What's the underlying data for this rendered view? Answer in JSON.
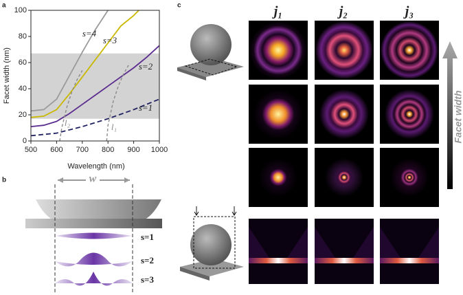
{
  "chart_data": {
    "type": "line",
    "x_label": "Wavelength (nm)",
    "y_label": "Facet width (nm)",
    "xlim": [
      500,
      1000
    ],
    "ylim": [
      0,
      100
    ],
    "xticks": [
      500,
      600,
      700,
      800,
      900,
      1000
    ],
    "yticks": [
      0,
      20,
      40,
      60,
      80,
      100
    ],
    "band": [
      17,
      67
    ],
    "band_color": "#d3d3d3",
    "series": [
      {
        "name": "s=4",
        "color": "#9a9a9a",
        "dashed": false,
        "x": [
          500,
          550,
          600,
          650,
          700,
          750,
          800
        ],
        "values": [
          23,
          24,
          32,
          50,
          68,
          85,
          100
        ]
      },
      {
        "name": "s=3",
        "color": "#c9b800",
        "dashed": false,
        "x": [
          500,
          550,
          600,
          650,
          700,
          750,
          800,
          850,
          900,
          920
        ],
        "values": [
          18,
          19,
          24,
          36,
          49,
          62,
          75,
          88,
          96,
          100
        ]
      },
      {
        "name": "s=2",
        "color": "#5b2c8f",
        "dashed": false,
        "x": [
          500,
          550,
          600,
          650,
          700,
          750,
          800,
          850,
          900,
          950,
          1000
        ],
        "values": [
          11,
          12,
          15,
          21,
          28,
          35,
          42,
          49,
          56,
          64,
          73
        ]
      },
      {
        "name": "s=1",
        "color": "#1f2060",
        "dashed": true,
        "x": [
          500,
          600,
          700,
          800,
          900,
          1000
        ],
        "values": [
          4,
          6,
          11,
          17,
          24,
          32
        ]
      },
      {
        "name": "l₂",
        "color": "#8a8a8a",
        "dashed": true,
        "x": [
          612,
          620,
          640,
          660,
          680,
          700
        ],
        "values": [
          0,
          10,
          26,
          38,
          47,
          54
        ]
      },
      {
        "name": "l₁",
        "color": "#8a8a8a",
        "dashed": true,
        "x": [
          795,
          800,
          820,
          840,
          860,
          880
        ],
        "values": [
          0,
          12,
          30,
          42,
          51,
          58
        ]
      }
    ]
  },
  "panel_labels": [
    "a",
    "b",
    "c"
  ],
  "panel_b": {
    "width_label": "w",
    "modes": [
      "s=1",
      "s=2",
      "s=3"
    ]
  },
  "panel_c": {
    "columns": [
      "j₁",
      "j₂",
      "j₃"
    ],
    "arrow_label": "Facet width"
  }
}
